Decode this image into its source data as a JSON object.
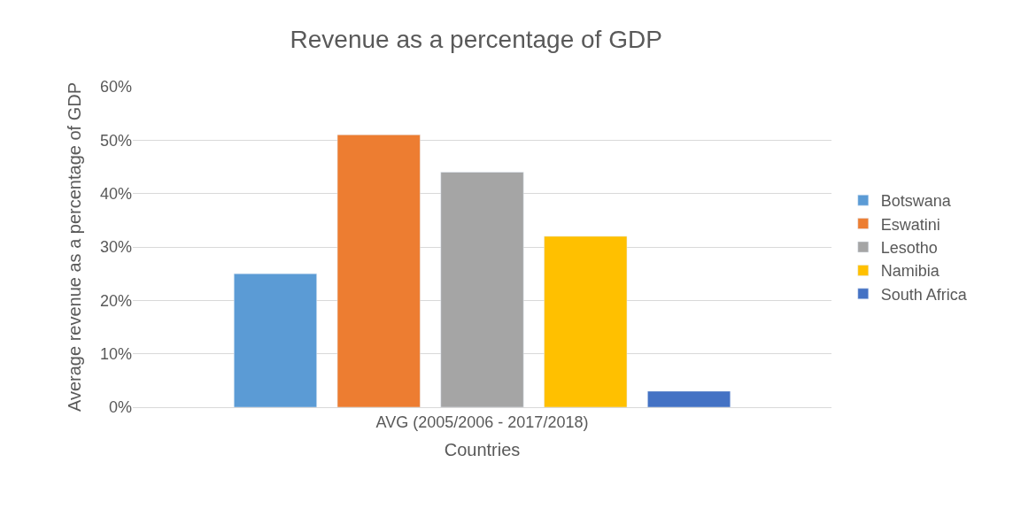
{
  "chart_data": {
    "type": "bar",
    "title": "Revenue as a percentage of GDP",
    "xlabel": "Countries",
    "ylabel": "Average revenue as a percentage of GDP",
    "categories": [
      "AVG (2005/2006 - 2017/2018)"
    ],
    "series": [
      {
        "name": "Botswana",
        "color": "#5b9bd5",
        "values": [
          25
        ]
      },
      {
        "name": "Eswatini",
        "color": "#ed7d31",
        "values": [
          51
        ]
      },
      {
        "name": "Lesotho",
        "color": "#a5a5a5",
        "values": [
          44
        ]
      },
      {
        "name": "Namibia",
        "color": "#ffc000",
        "values": [
          32
        ]
      },
      {
        "name": "South Africa",
        "color": "#4472c4",
        "values": [
          3
        ]
      }
    ],
    "ylim": [
      0,
      60
    ],
    "yticks": [
      {
        "value": 0,
        "label": "0%"
      },
      {
        "value": 10,
        "label": "10%"
      },
      {
        "value": 20,
        "label": "20%"
      },
      {
        "value": 30,
        "label": "30%"
      },
      {
        "value": 40,
        "label": "40%"
      },
      {
        "value": 50,
        "label": "50%"
      },
      {
        "value": 60,
        "label": "60%"
      }
    ],
    "grid": "y",
    "legend": "right"
  }
}
